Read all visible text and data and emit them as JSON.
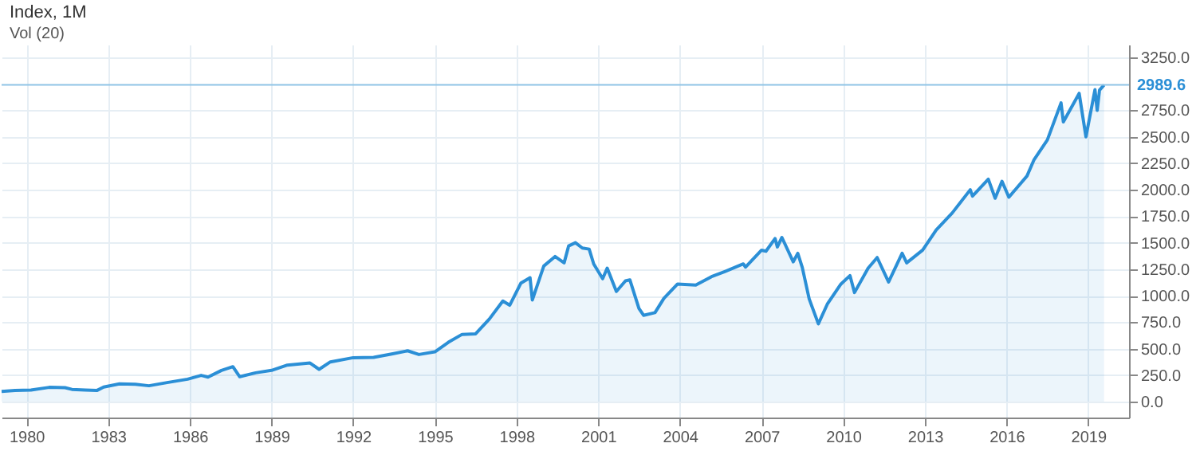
{
  "chart_data": {
    "type": "area",
    "title": "Index, 1M",
    "subtitle": "Vol (20)",
    "x": [
      "1979-02",
      "1979-08",
      "1980-03",
      "1980-11",
      "1981-06",
      "1981-09",
      "1982-03",
      "1982-08",
      "1982-11",
      "1983-06",
      "1984-01",
      "1984-07",
      "1985-03",
      "1985-12",
      "1986-06",
      "1986-09",
      "1987-03",
      "1987-08",
      "1987-11",
      "1988-06",
      "1989-01",
      "1989-08",
      "1990-06",
      "1990-10",
      "1991-03",
      "1992-01",
      "1992-10",
      "1993-06",
      "1994-01",
      "1994-06",
      "1995-01",
      "1995-07",
      "1996-01",
      "1996-07",
      "1997-01",
      "1997-07",
      "1997-10",
      "1998-03",
      "1998-07",
      "1998-08",
      "1999-01",
      "1999-06",
      "1999-10",
      "1999-12",
      "2000-03",
      "2000-06",
      "2000-09",
      "2000-11",
      "2001-03",
      "2001-05",
      "2001-09",
      "2002-01",
      "2002-03",
      "2002-07",
      "2002-09",
      "2003-02",
      "2003-06",
      "2003-12",
      "2004-08",
      "2005-03",
      "2005-09",
      "2006-05",
      "2006-06",
      "2007-01",
      "2007-03",
      "2007-07",
      "2007-08",
      "2007-10",
      "2008-03",
      "2008-05",
      "2008-07",
      "2008-10",
      "2009-02",
      "2009-06",
      "2009-12",
      "2010-04",
      "2010-06",
      "2010-12",
      "2011-04",
      "2011-09",
      "2012-03",
      "2012-05",
      "2012-12",
      "2013-06",
      "2014-01",
      "2014-09",
      "2014-10",
      "2015-05",
      "2015-08",
      "2015-11",
      "2016-02",
      "2016-10",
      "2017-01",
      "2017-07",
      "2018-01",
      "2018-02",
      "2018-09",
      "2018-12",
      "2019-04",
      "2019-05",
      "2019-06",
      "2019-08"
    ],
    "values": [
      97,
      105,
      110,
      135,
      132,
      116,
      110,
      105,
      138,
      168,
      164,
      150,
      180,
      212,
      248,
      232,
      295,
      330,
      235,
      272,
      295,
      345,
      365,
      305,
      375,
      415,
      418,
      450,
      480,
      445,
      470,
      560,
      635,
      640,
      780,
      950,
      910,
      1120,
      1170,
      960,
      1280,
      1370,
      1310,
      1470,
      1500,
      1450,
      1440,
      1300,
      1160,
      1260,
      1040,
      1140,
      1150,
      880,
      815,
      840,
      975,
      1110,
      1100,
      1180,
      1230,
      1300,
      1270,
      1430,
      1420,
      1540,
      1460,
      1550,
      1320,
      1400,
      1265,
      970,
      735,
      920,
      1110,
      1190,
      1030,
      1260,
      1360,
      1130,
      1400,
      1310,
      1430,
      1620,
      1780,
      2000,
      1940,
      2100,
      1920,
      2080,
      1930,
      2130,
      2280,
      2470,
      2820,
      2640,
      2910,
      2500,
      2945,
      2750,
      2940,
      2989.6
    ],
    "color": "#2b8fd6",
    "xlim": [
      "1979-02",
      "2020-07"
    ],
    "xticks": [
      "1980",
      "1983",
      "1986",
      "1989",
      "1992",
      "1995",
      "1998",
      "2001",
      "2004",
      "2007",
      "2010",
      "2013",
      "2016",
      "2019"
    ],
    "ylim": [
      -150,
      3370
    ],
    "yticks": [
      {
        "value": 0,
        "label": "0.0"
      },
      {
        "value": 250,
        "label": "250.0"
      },
      {
        "value": 500,
        "label": "500.0"
      },
      {
        "value": 750,
        "label": "750.0"
      },
      {
        "value": 1000,
        "label": "1000.0"
      },
      {
        "value": 1250,
        "label": "1250.0"
      },
      {
        "value": 1500,
        "label": "1500.0"
      },
      {
        "value": 1750,
        "label": "1750.0"
      },
      {
        "value": 2000,
        "label": "2000.0"
      },
      {
        "value": 2250,
        "label": "2250.0"
      },
      {
        "value": 2500,
        "label": "2500.0"
      },
      {
        "value": 2750,
        "label": "2750.0"
      },
      {
        "value": 3250,
        "label": "3250.0"
      }
    ],
    "grid": true,
    "ref_lines": [
      {
        "axis": "y",
        "value": 2989.6,
        "label": "2989.6",
        "color": "#8fc4e6"
      }
    ]
  }
}
